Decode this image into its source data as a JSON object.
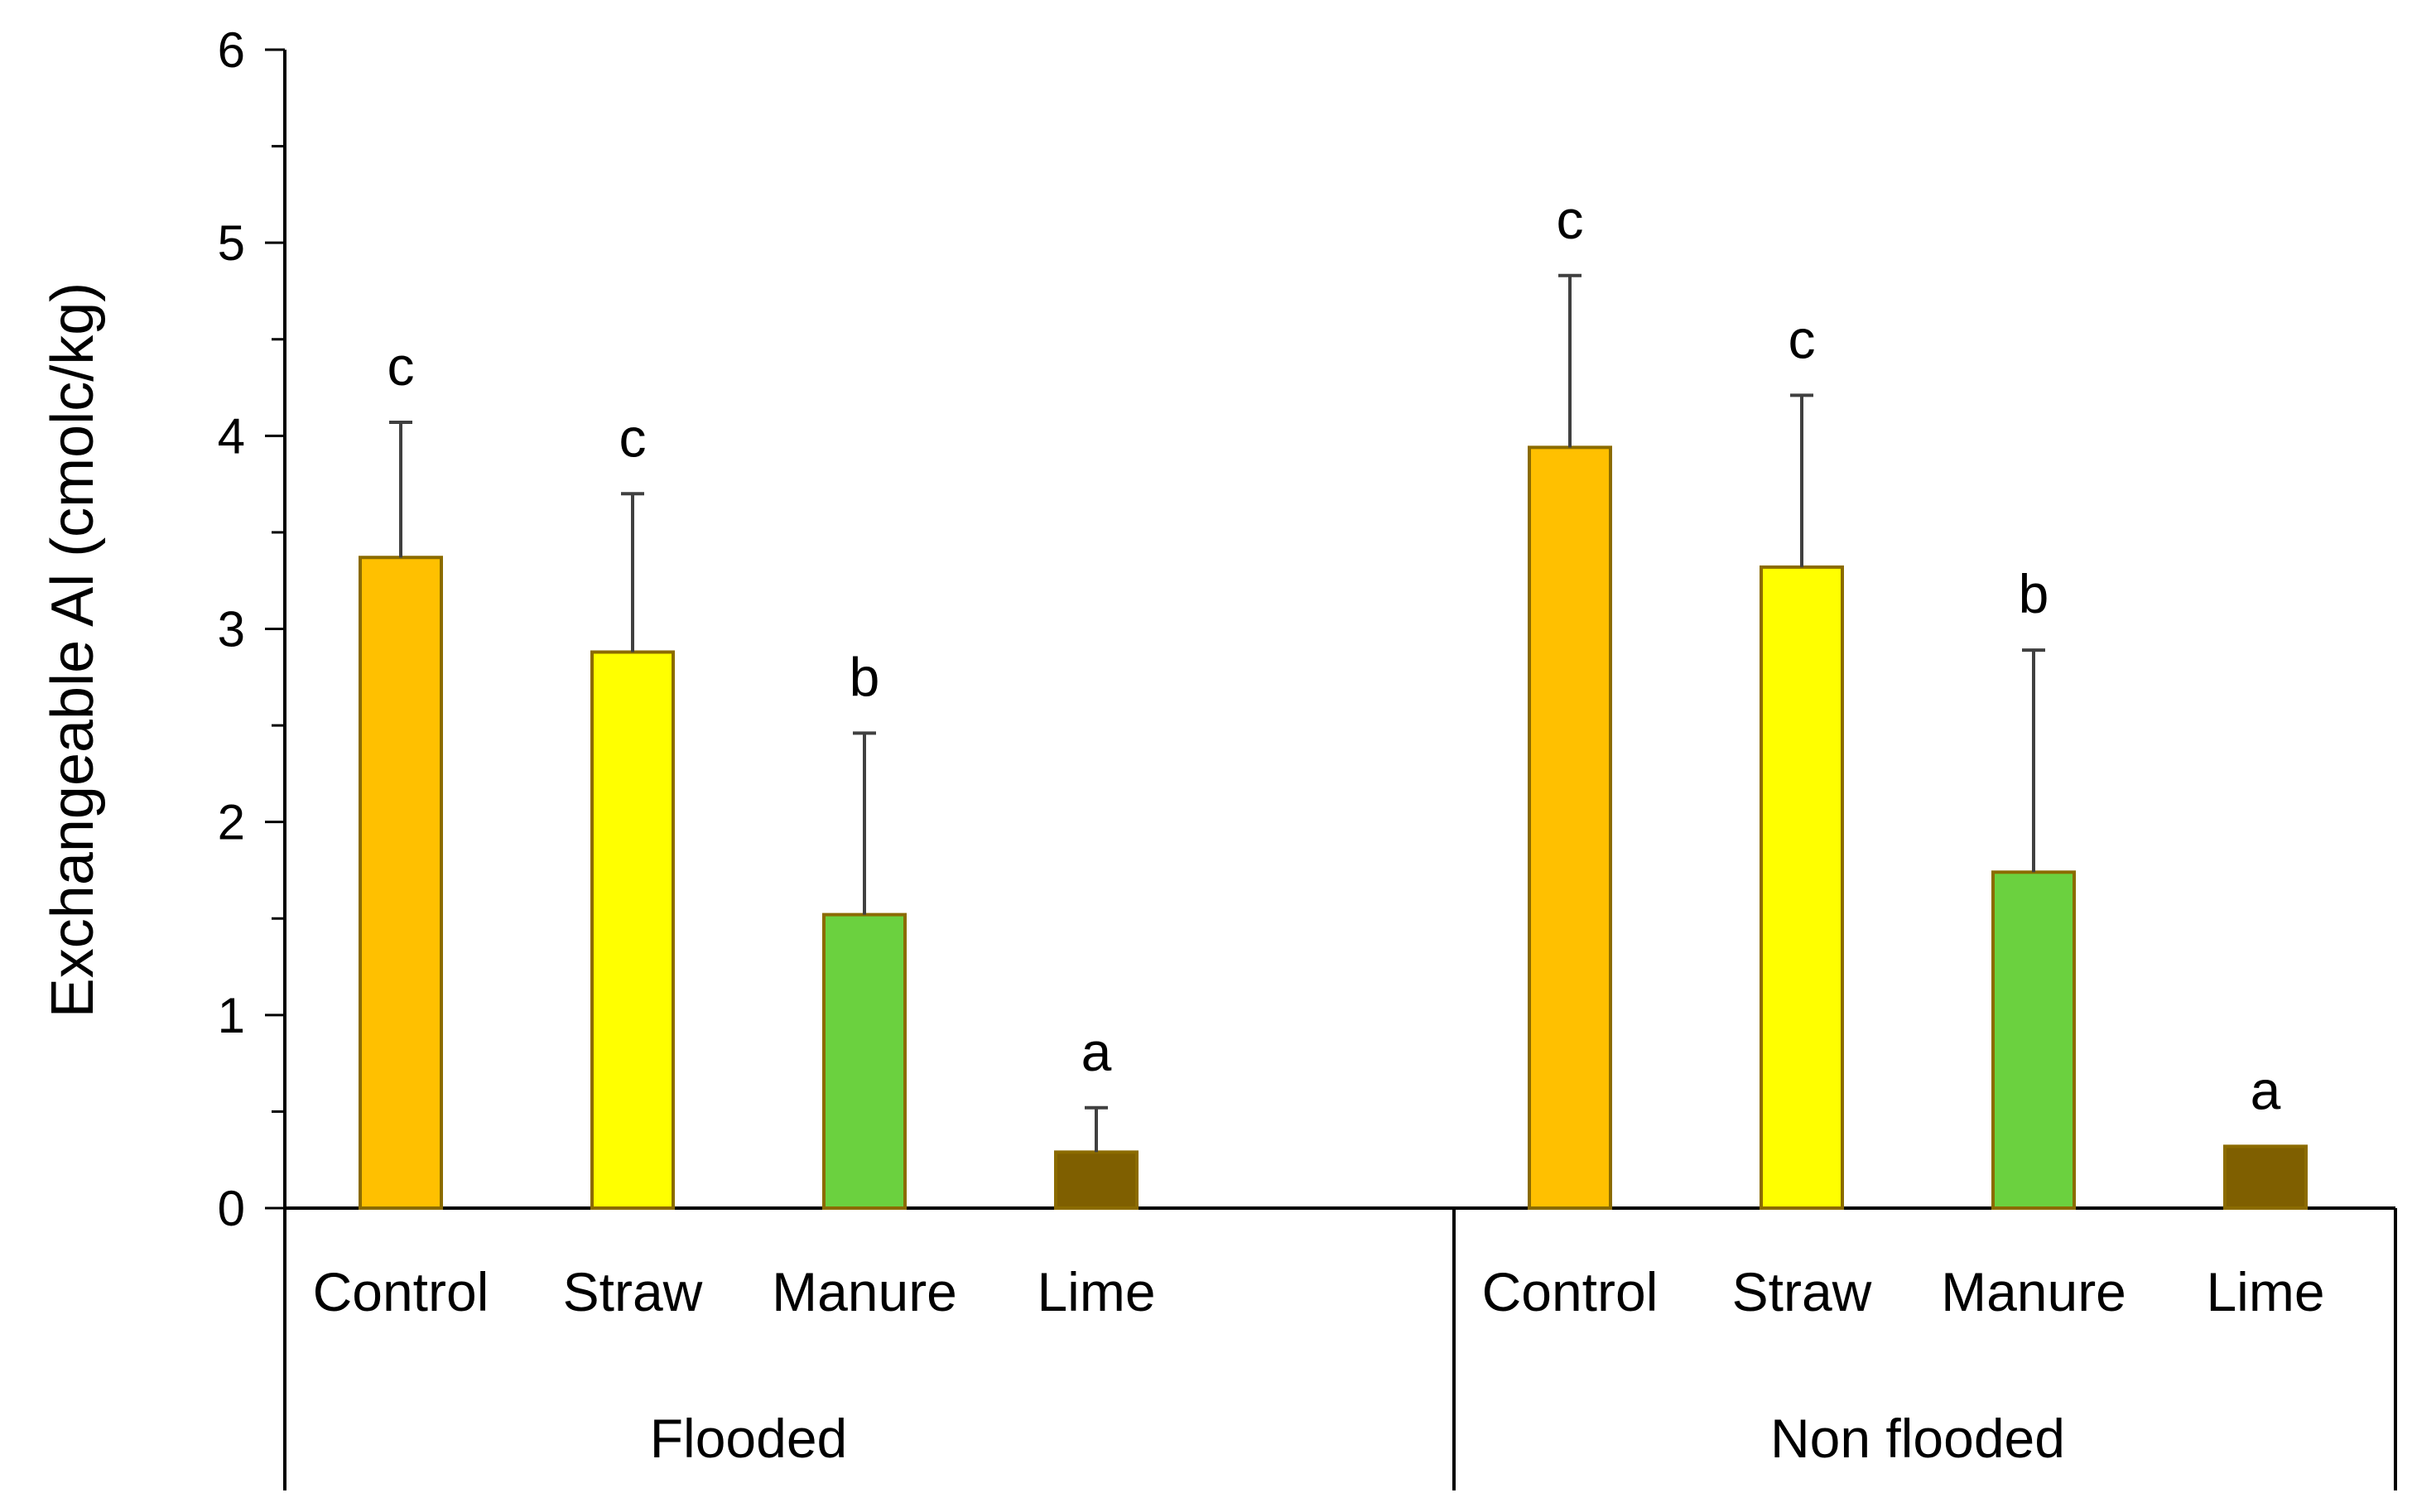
{
  "chart_data": {
    "type": "bar",
    "title": "",
    "xlabel": "",
    "ylabel": "Exchangeable Al (cmolc/kg)",
    "ylim": [
      0,
      6
    ],
    "yticks": [
      0,
      1,
      2,
      3,
      4,
      5,
      6
    ],
    "categories": [
      "Control",
      "Straw",
      "Manure",
      "Lime"
    ],
    "groups": [
      {
        "name": "Flooded",
        "bars": [
          {
            "category": "Control",
            "value": 3.37,
            "error": 0.7,
            "letter": "c",
            "color": "#FFC000"
          },
          {
            "category": "Straw",
            "value": 2.88,
            "error": 0.82,
            "letter": "c",
            "color": "#FFFF00"
          },
          {
            "category": "Manure",
            "value": 1.52,
            "error": 0.94,
            "letter": "b",
            "color": "#6BD13F"
          },
          {
            "category": "Lime",
            "value": 0.29,
            "error": 0.23,
            "letter": "a",
            "color": "#7F5F00"
          }
        ]
      },
      {
        "name": "Non flooded",
        "bars": [
          {
            "category": "Control",
            "value": 3.94,
            "error": 0.89,
            "letter": "c",
            "color": "#FFC000"
          },
          {
            "category": "Straw",
            "value": 3.32,
            "error": 0.89,
            "letter": "c",
            "color": "#FFFF00"
          },
          {
            "category": "Manure",
            "value": 1.74,
            "error": 1.15,
            "letter": "b",
            "color": "#6BD13F"
          },
          {
            "category": "Lime",
            "value": 0.32,
            "error": 0.0,
            "letter": "a",
            "color": "#7F5F00"
          }
        ]
      }
    ],
    "bar_outline_color": "#8B6B00",
    "error_bar_color": "#404040",
    "grid": false,
    "legend": "none"
  }
}
